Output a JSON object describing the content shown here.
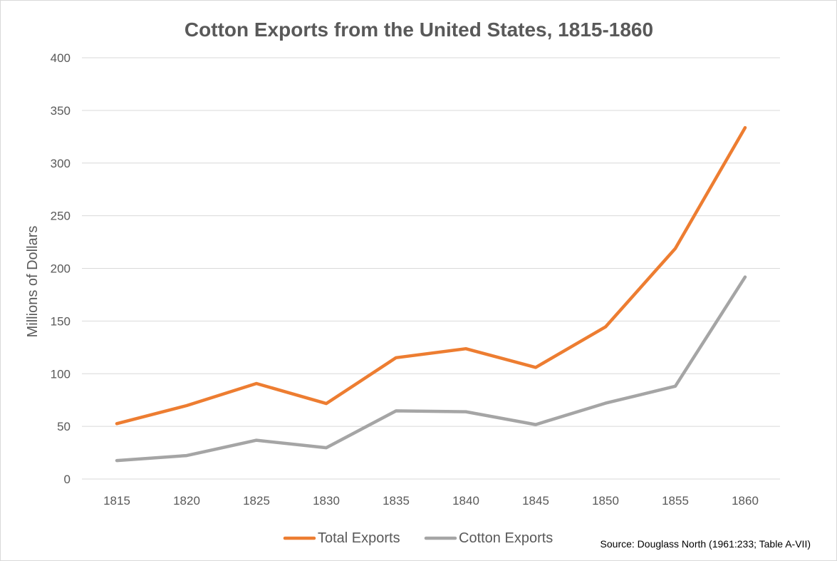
{
  "chart_data": {
    "type": "line",
    "title": "Cotton Exports from the United States, 1815-1860",
    "xlabel": "",
    "ylabel": "Millions of Dollars",
    "categories": [
      "1815",
      "1820",
      "1825",
      "1830",
      "1835",
      "1840",
      "1845",
      "1850",
      "1855",
      "1860"
    ],
    "ylim": [
      0,
      400
    ],
    "yticks": [
      "0",
      "50",
      "100",
      "150",
      "200",
      "250",
      "300",
      "350",
      "400"
    ],
    "grid": "horizontal",
    "legend_position": "bottom",
    "series": [
      {
        "name": "Total Exports",
        "color": "#ed7d31",
        "values": [
          52.6,
          69.7,
          90.7,
          71.7,
          115.2,
          123.7,
          106.0,
          144.4,
          218.9,
          333.6
        ]
      },
      {
        "name": "Cotton Exports",
        "color": "#a5a5a5",
        "values": [
          17.5,
          22.3,
          36.8,
          29.7,
          64.7,
          63.9,
          51.7,
          72.0,
          88.1,
          191.8
        ]
      }
    ],
    "source_note": "Source: Douglass North (1961:233; Table A-VII)"
  }
}
